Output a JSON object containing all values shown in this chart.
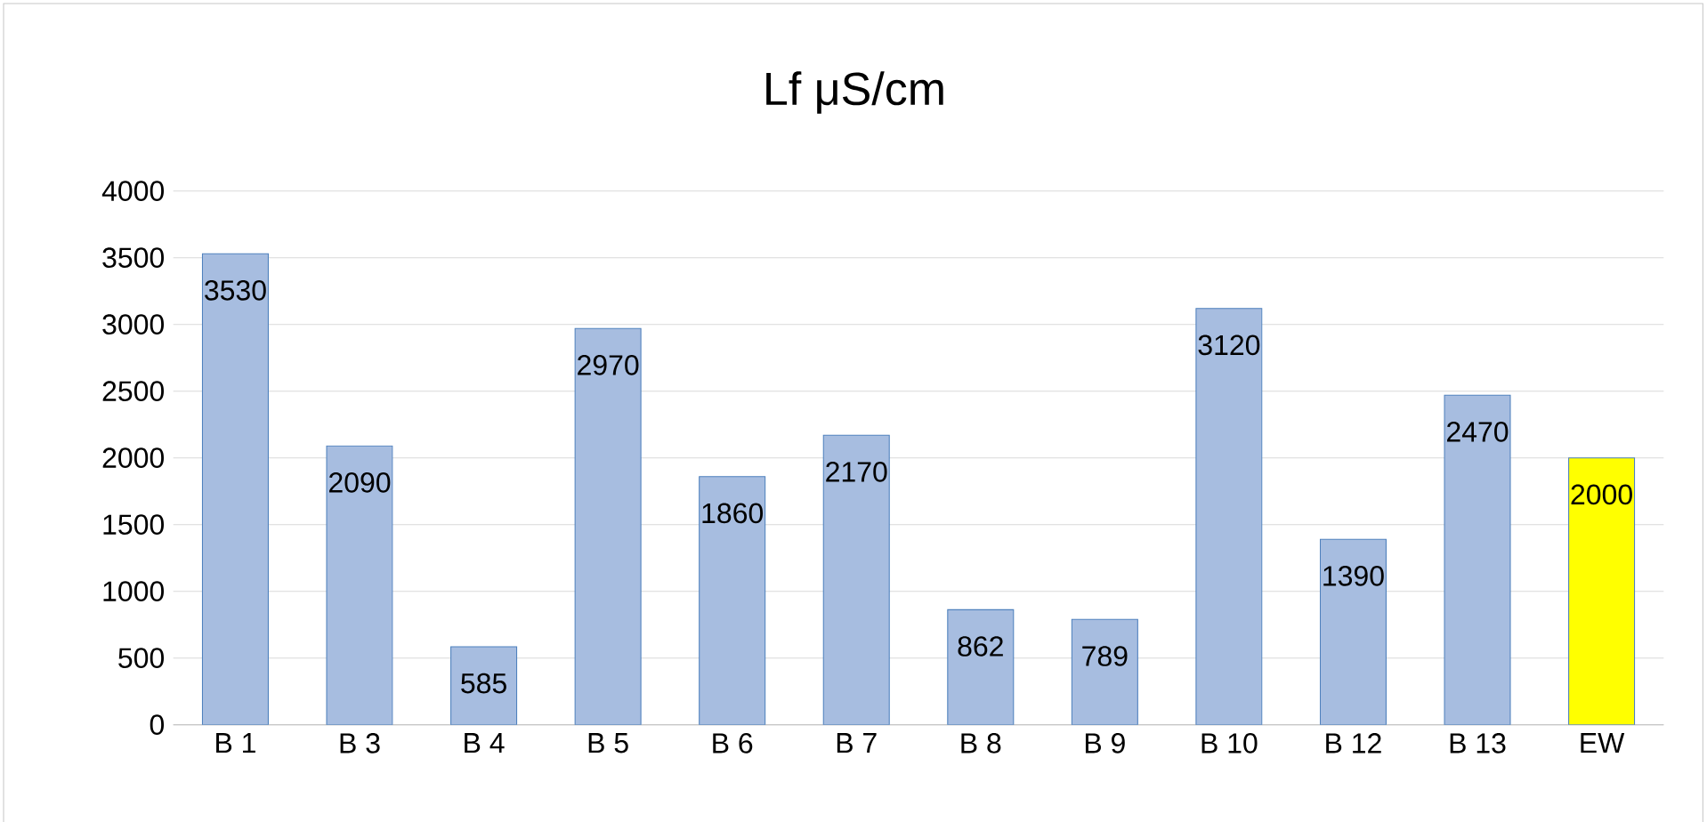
{
  "chart_data": {
    "type": "bar",
    "title": "Lf μS/cm",
    "categories": [
      "B 1",
      "B 3",
      "B 4",
      "B 5",
      "B 6",
      "B 7",
      "B 8",
      "B 9",
      "B 10",
      "B 12",
      "B 13",
      "EW"
    ],
    "values": [
      3530,
      2090,
      585,
      2970,
      1860,
      2170,
      862,
      789,
      3120,
      1390,
      2470,
      2000
    ],
    "colors": [
      "#a7bde0",
      "#a7bde0",
      "#a7bde0",
      "#a7bde0",
      "#a7bde0",
      "#a7bde0",
      "#a7bde0",
      "#a7bde0",
      "#a7bde0",
      "#a7bde0",
      "#a7bde0",
      "#ffff00"
    ],
    "ylim": [
      0,
      4000
    ],
    "yticks": [
      0,
      500,
      1000,
      1500,
      2000,
      2500,
      3000,
      3500,
      4000
    ],
    "grid": "y",
    "data_labels": true
  }
}
